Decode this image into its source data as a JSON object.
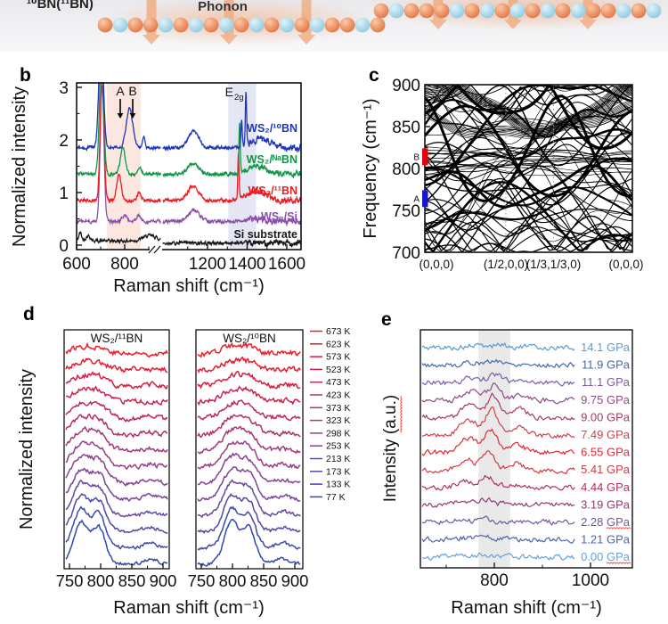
{
  "panel_letters": {
    "b": "b",
    "c": "c",
    "d": "d",
    "e": "e"
  },
  "schematic": {
    "label_left": "¹⁰BN(¹¹BN)",
    "phonon_label": "Phonon",
    "boron_color": "#e06a38",
    "nitrogen_color": "#85c6de",
    "arrow_color": "#f0a878",
    "glow_color": "#f1a470"
  },
  "chart_data": [
    {
      "id": "b",
      "type": "line",
      "xlabel": "Raman shift (cm⁻¹)",
      "ylabel": "Normalized intensity",
      "x_ticks": [
        [
          "600",
          600
        ],
        [
          "800",
          800
        ],
        [
          "1200",
          1200
        ],
        [
          "1400",
          1400
        ],
        [
          "1600",
          1600
        ]
      ],
      "y_ticks": [
        [
          "0",
          0
        ],
        [
          "1",
          1
        ],
        [
          "2",
          2
        ],
        [
          "3",
          3
        ]
      ],
      "axis_break": true,
      "xlim_segments": [
        [
          600,
          950
        ],
        [
          975,
          1672
        ]
      ],
      "ylim": [
        -0.1,
        3.1
      ],
      "annotations": {
        "peak_a": "A",
        "peak_b": "B",
        "e2g_base": "E",
        "e2g_sub": "2g"
      },
      "shaded_bands": [
        {
          "x0": 726,
          "x1": 866,
          "color": "rgba(246,185,165,0.35)"
        },
        {
          "x0": 1305,
          "x1": 1445,
          "color": "rgba(172,178,218,0.32)"
        }
      ],
      "series": [
        {
          "label": "Si substrate",
          "color": "#181818",
          "offset": 0.08,
          "flat_after_break": 0.04,
          "peaks": [
            [
              615,
              0.16,
              8
            ],
            [
              648,
              0.1,
              14
            ],
            [
              905,
              0.1,
              40
            ]
          ]
        },
        {
          "label": "WS₂/Si",
          "color": "#8a4fa8",
          "offset": 0.45,
          "peaks": [
            [
              706,
              2.6,
              11
            ],
            [
              800,
              0.12,
              14
            ],
            [
              858,
              0.1,
              12
            ],
            [
              1130,
              0.22,
              38
            ],
            [
              1450,
              0.05,
              80
            ]
          ]
        },
        {
          "label": "WS₂/¹¹BN",
          "color": "#ec1c24",
          "offset": 0.85,
          "peaks": [
            [
              706,
              2.4,
              11
            ],
            [
              776,
              0.48,
              13
            ],
            [
              860,
              0.16,
              10
            ],
            [
              1128,
              0.27,
              38
            ],
            [
              1356,
              0.9,
              4.5
            ],
            [
              1445,
              0.17,
              70
            ]
          ]
        },
        {
          "label": "WS₂/ᴺᵃBN",
          "color": "#0f9648",
          "offset": 1.35,
          "peaks": [
            [
              704,
              2.4,
              12
            ],
            [
              792,
              0.5,
              14
            ],
            [
              862,
              0.15,
              10
            ],
            [
              1128,
              0.2,
              38
            ],
            [
              1362,
              0.95,
              4.5
            ],
            [
              1450,
              0.14,
              70
            ]
          ]
        },
        {
          "label": "WS₂/¹⁰BN",
          "color": "#2038b8",
          "offset": 1.85,
          "peaks": [
            [
              702,
              2.2,
              13
            ],
            [
              820,
              0.75,
              19
            ],
            [
              880,
              0.22,
              8
            ],
            [
              1130,
              0.33,
              36
            ],
            [
              1372,
              0.5,
              4.5
            ],
            [
              1394,
              1.05,
              4.5
            ],
            [
              1470,
              0.17,
              70
            ]
          ]
        }
      ]
    },
    {
      "id": "c",
      "type": "line",
      "ylabel": "Frequency (cm⁻¹)",
      "y_ticks": [
        [
          "700",
          700
        ],
        [
          "750",
          750
        ],
        [
          "800",
          800
        ],
        [
          "850",
          850
        ],
        [
          "900",
          900
        ]
      ],
      "ylim": [
        700,
        900
      ],
      "k_path_labels": [
        "(0,0,0)",
        "(1/2,0,0)",
        "(1/3,1/3,0)",
        "(0,0,0)"
      ],
      "k_positions": [
        0,
        0.39,
        0.62,
        1
      ],
      "markers": [
        {
          "label": "B",
          "freq_range": [
            804,
            824
          ],
          "color": "#e8000d"
        },
        {
          "label": "A",
          "freq_range": [
            754,
            774
          ],
          "color": "#1414d2"
        }
      ],
      "band_style": {
        "n_wavy": 46,
        "n_flat": 14,
        "n_ribbon": 3,
        "seed": 11
      }
    },
    {
      "id": "d",
      "type": "line",
      "ylabel": "Normalized intensity",
      "xlabel": "Raman shift (cm⁻¹)",
      "x_ticks": [
        [
          "750",
          750
        ],
        [
          "800",
          800
        ],
        [
          "850",
          850
        ],
        [
          "900",
          900
        ]
      ],
      "subpanels": [
        {
          "title": "WS₂/¹¹BN",
          "peak_centers": [
            768,
            797
          ]
        },
        {
          "title": "WS₂/¹⁰BN",
          "peak_centers": [
            798,
            826
          ]
        }
      ],
      "temperatures": [
        {
          "label": "673 K",
          "color": "#ee1d25"
        },
        {
          "label": "623 K",
          "color": "#e41b31"
        },
        {
          "label": "573 K",
          "color": "#d91c40"
        },
        {
          "label": "523 K",
          "color": "#cd214e"
        },
        {
          "label": "473 K",
          "color": "#c0285c"
        },
        {
          "label": "423 K",
          "color": "#b32f6a"
        },
        {
          "label": "373 K",
          "color": "#a63678"
        },
        {
          "label": "323 K",
          "color": "#993d85"
        },
        {
          "label": "298 K",
          "color": "#8b4291"
        },
        {
          "label": "253 K",
          "color": "#7a4598"
        },
        {
          "label": "213 K",
          "color": "#67489e"
        },
        {
          "label": "173 K",
          "color": "#5349a4"
        },
        {
          "label": "133 K",
          "color": "#4049a9"
        },
        {
          "label": "77 K",
          "color": "#2e49ae"
        }
      ]
    },
    {
      "id": "e",
      "type": "line",
      "ylabel": "Intensity (a.u.)",
      "xlabel": "Raman shift (cm⁻¹)",
      "x_ticks": [
        [
          "800",
          800
        ],
        [
          "1000",
          1000
        ]
      ],
      "shaded_band": {
        "x0": 767,
        "x1": 833,
        "color": "rgba(120,120,120,0.16)"
      },
      "pressures": [
        {
          "label": "14.1 GPa",
          "value": 14.1,
          "color": "#5b9bd5",
          "squiggle": false
        },
        {
          "label": "11.9 GPa",
          "value": 11.9,
          "color": "#4667b1",
          "squiggle": false
        },
        {
          "label": "11.1 GPa",
          "value": 11.1,
          "color": "#7b5ea7",
          "squiggle": false
        },
        {
          "label": "9.75 GPa",
          "value": 9.75,
          "color": "#8f4b82",
          "squiggle": false
        },
        {
          "label": "9.00 GPa",
          "value": 9.0,
          "color": "#a63960",
          "squiggle": false
        },
        {
          "label": "7.49 GPa",
          "value": 7.49,
          "color": "#d4404a",
          "squiggle": false
        },
        {
          "label": "6.55 GPa",
          "value": 6.55,
          "color": "#ea2430",
          "squiggle": false
        },
        {
          "label": "5.41 GPa",
          "value": 5.41,
          "color": "#d23a46",
          "squiggle": false
        },
        {
          "label": "4.44 GPa",
          "value": 4.44,
          "color": "#b13253",
          "squiggle": false
        },
        {
          "label": "3.19 GPa",
          "value": 3.19,
          "color": "#8d3d6d",
          "squiggle": false
        },
        {
          "label": "2.28 GPa",
          "value": 2.28,
          "color": "#73559c",
          "squiggle": true
        },
        {
          "label": "1.21 GPa",
          "value": 1.21,
          "color": "#4f63ae",
          "squiggle": false
        },
        {
          "label": "0.00 GPa",
          "value": 0.0,
          "color": "#68a0d8",
          "squiggle": true
        }
      ]
    }
  ]
}
